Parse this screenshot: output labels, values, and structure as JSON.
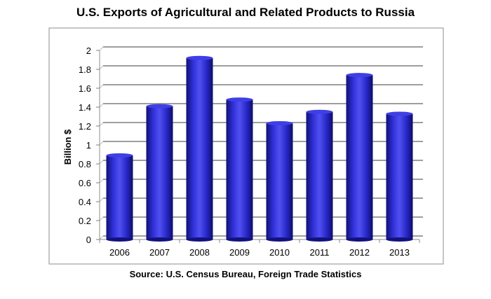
{
  "chart_data": {
    "type": "bar",
    "title": "U.S. Exports of Agricultural and Related Products to Russia",
    "source": "Source: U.S. Census Bureau, Foreign Trade Statistics",
    "xlabel": "",
    "ylabel": "Billion $",
    "ylim": [
      0,
      2
    ],
    "yticks": [
      "0",
      "0.2",
      "0.4",
      "0.6",
      "0.8",
      "1",
      "1.2",
      "1.4",
      "1.6",
      "1.8",
      "2"
    ],
    "categories": [
      "2006",
      "2007",
      "2008",
      "2009",
      "2010",
      "2011",
      "2012",
      "2013"
    ],
    "values": [
      0.89,
      1.41,
      1.92,
      1.48,
      1.23,
      1.35,
      1.74,
      1.33
    ],
    "grid": true,
    "bar_color": "#2020c8"
  }
}
